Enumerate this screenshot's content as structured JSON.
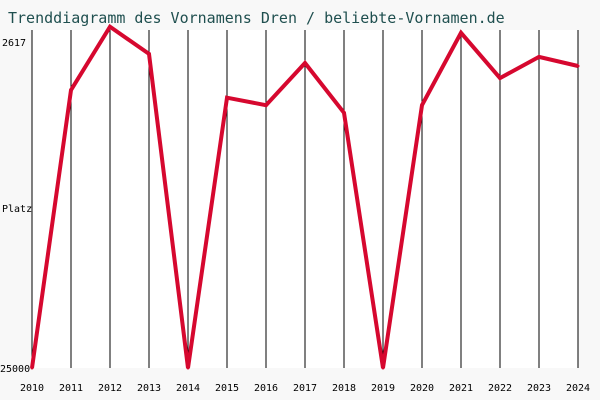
{
  "chart_data": {
    "type": "line",
    "title": "Trenddiagramm des Vornamens Dren / beliebte-Vornamen.de",
    "ylabel": "Platz",
    "y_top_label": "2617",
    "y_bottom_label": "25000",
    "ylim": [
      2617,
      25000
    ],
    "y_inverted": true,
    "grid": "vertical",
    "x": [
      "2010",
      "2011",
      "2012",
      "2013",
      "2014",
      "2015",
      "2016",
      "2017",
      "2018",
      "2019",
      "2020",
      "2021",
      "2022",
      "2023",
      "2024"
    ],
    "series": [
      {
        "values": [
          25000,
          6600,
          2400,
          4200,
          25000,
          7100,
          7600,
          4800,
          8100,
          25000,
          7600,
          2800,
          5800,
          4400,
          5000
        ],
        "color": "#d6082f"
      }
    ]
  },
  "colors": {
    "background": "#f8f8f8",
    "plot_background": "#ffffff",
    "grid": "#000000",
    "title": "#1f4f4f"
  }
}
